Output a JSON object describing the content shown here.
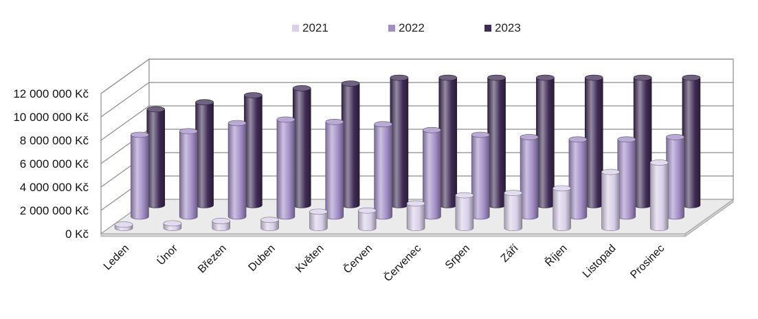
{
  "chart_data": {
    "type": "bar",
    "title": "",
    "xlabel": "",
    "ylabel": "",
    "ylim": [
      0,
      12000000
    ],
    "grid": true,
    "legend_position": "top",
    "y_ticks": [
      "0 Kč",
      "2 000 000 Kč",
      "4 000 000 Kč",
      "6 000 000 Kč",
      "8 000 000 Kč",
      "10 000 000 Kč",
      "12 000 000 Kč"
    ],
    "y_tick_values": [
      0,
      2000000,
      4000000,
      6000000,
      8000000,
      10000000,
      12000000
    ],
    "categories": [
      "Leden",
      "Únor",
      "Březen",
      "Duben",
      "Květen",
      "Červen",
      "Červenec",
      "Srpen",
      "Září",
      "Říjen",
      "Listopad",
      "Prosinec"
    ],
    "series": [
      {
        "name": "2021",
        "color": "#d9cfe9",
        "values": [
          300000,
          400000,
          600000,
          700000,
          1400000,
          1500000,
          2100000,
          2800000,
          3000000,
          3400000,
          4800000,
          5600000
        ]
      },
      {
        "name": "2022",
        "color": "#a28ec7",
        "values": [
          7000000,
          7300000,
          8000000,
          8300000,
          8100000,
          7900000,
          7400000,
          7000000,
          6800000,
          6600000,
          6600000,
          6800000
        ]
      },
      {
        "name": "2023",
        "color": "#3f2c55",
        "values": [
          8200000,
          8800000,
          9400000,
          10000000,
          10400000,
          10900000,
          10900000,
          10900000,
          10900000,
          10900000,
          10900000,
          10900000
        ]
      }
    ]
  }
}
